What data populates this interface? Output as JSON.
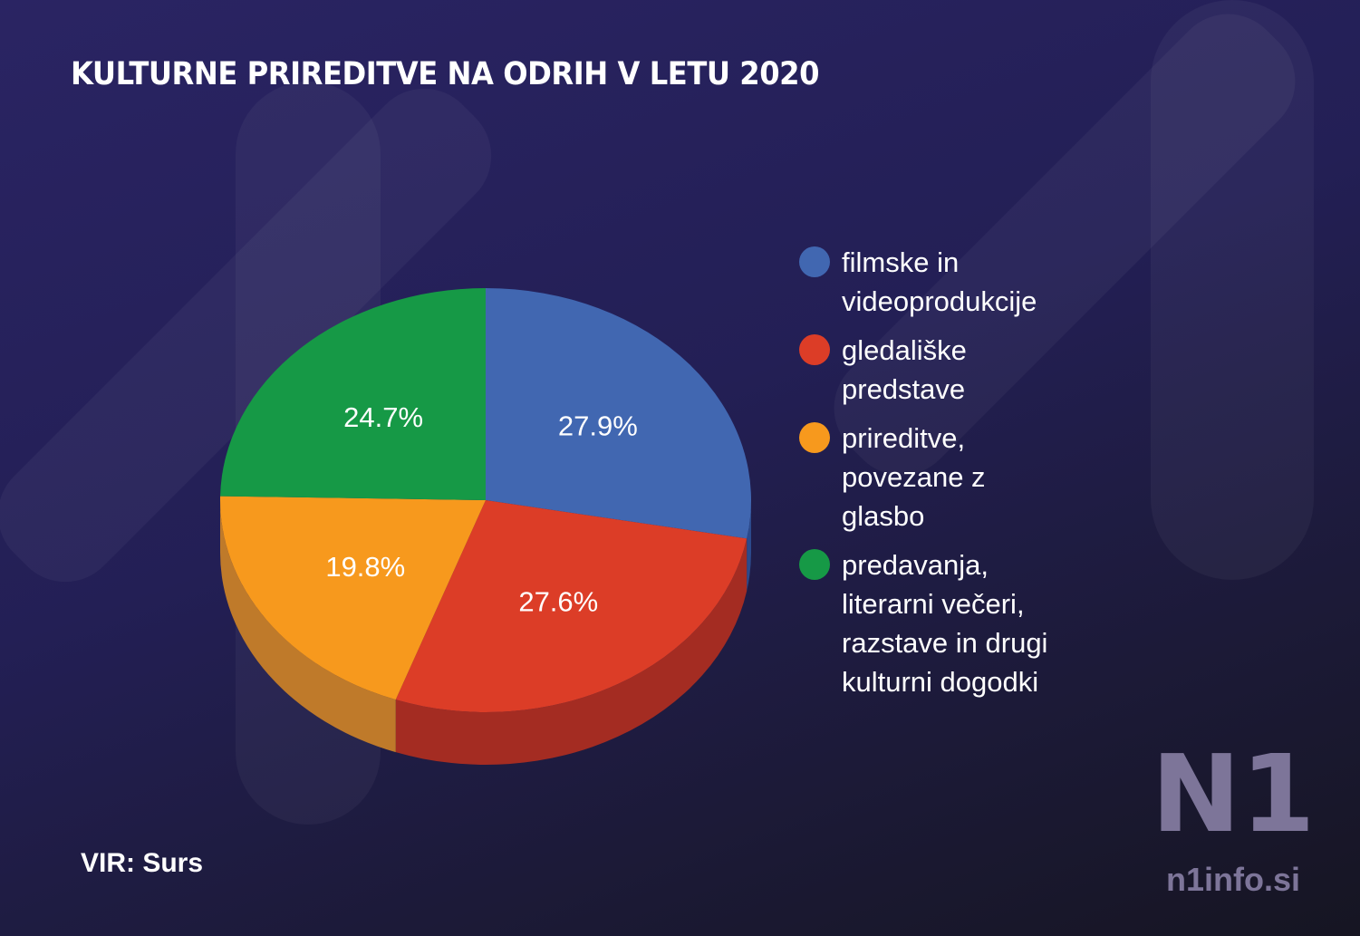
{
  "title": "KULTURNE PRIREDITVE NA ODRIH V LETU 2020",
  "source": "VIR: Surs",
  "logo": {
    "mark": "N1",
    "site": "n1info.si"
  },
  "chart_data": {
    "type": "pie",
    "style": "3d",
    "title": "KULTURNE PRIREDITVE NA ODRIH V LETU 2020",
    "legend_position": "right",
    "slices": [
      {
        "label": "filmske in videoprodukcije",
        "value": 27.9,
        "value_label": "27.9%",
        "color": "#4167b1",
        "side_color": "#2c4a8c"
      },
      {
        "label": "gledališke predstave",
        "value": 27.6,
        "value_label": "27.6%",
        "color": "#dc3d27",
        "side_color": "#a42c22"
      },
      {
        "label": "prireditve, povezane z glasbo",
        "value": 19.8,
        "value_label": "19.8%",
        "color": "#f7991d",
        "side_color": "#bf7a2a"
      },
      {
        "label": "predavanja, literarni večeri, razstave in drugi kulturni dogodki",
        "value": 24.7,
        "value_label": "24.7%",
        "color": "#169946",
        "side_color": "#0f6e33"
      }
    ]
  }
}
